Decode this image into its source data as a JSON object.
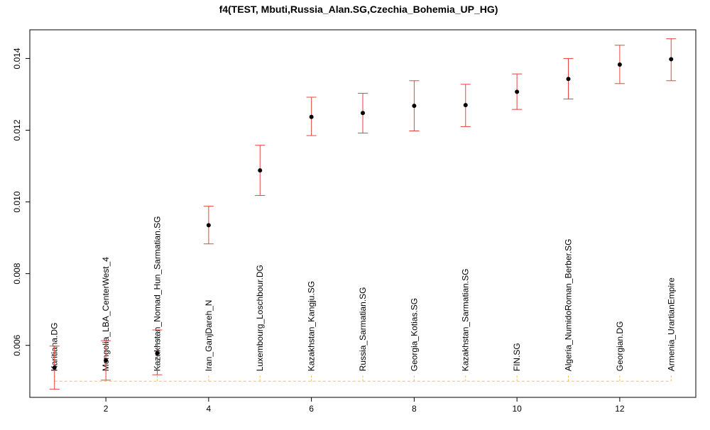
{
  "chart_data": {
    "type": "scatter",
    "title": "f4(TEST, Mbuti,Russia_Alan.SG,Czechia_Bohemia_UP_HG)",
    "xlabel": "",
    "ylabel": "",
    "xlim": [
      0.52,
      13.48
    ],
    "ylim": [
      0.00455,
      0.0148
    ],
    "x_ticks": [
      2,
      4,
      6,
      8,
      10,
      12
    ],
    "y_ticks": [
      0.006,
      0.008,
      0.01,
      0.012,
      0.014
    ],
    "y_tick_labels": [
      "0.006",
      "0.008",
      "0.010",
      "0.012",
      "0.014"
    ],
    "grid": false,
    "baseline_y": 0.005,
    "point_label_y": 0.005,
    "colors": {
      "point": "#000000",
      "error_bar": "#e8433f",
      "baseline": "#f5c542",
      "axis": "#000000"
    },
    "points": [
      {
        "x": 1,
        "y": 0.00538,
        "low": 0.00478,
        "high": 0.00598,
        "label": "Karitiana.DG"
      },
      {
        "x": 2,
        "y": 0.00558,
        "low": 0.00503,
        "high": 0.00613,
        "label": "Mongolia_LBA_CenterWest_4"
      },
      {
        "x": 3,
        "y": 0.00578,
        "low": 0.00518,
        "high": 0.00643,
        "label": "Kazakhstan_Nomad_Hun_Sarmatian.SG"
      },
      {
        "x": 4,
        "y": 0.00935,
        "low": 0.00883,
        "high": 0.00988,
        "label": "Iran_GanjDareh_N"
      },
      {
        "x": 5,
        "y": 0.01088,
        "low": 0.01018,
        "high": 0.01158,
        "label": "Luxembourg_Loschbour.DG"
      },
      {
        "x": 6,
        "y": 0.01237,
        "low": 0.01185,
        "high": 0.01292,
        "label": "Kazakhstan_Kangju.SG"
      },
      {
        "x": 7,
        "y": 0.01248,
        "low": 0.01192,
        "high": 0.01303,
        "label": "Russia_Sarmatian.SG"
      },
      {
        "x": 8,
        "y": 0.01268,
        "low": 0.01198,
        "high": 0.01338,
        "label": "Georgia_Kotias.SG"
      },
      {
        "x": 9,
        "y": 0.0127,
        "low": 0.0121,
        "high": 0.01328,
        "label": "Kazakhstan_Sarmatian.SG"
      },
      {
        "x": 10,
        "y": 0.01307,
        "low": 0.01258,
        "high": 0.01357,
        "label": "FIN.SG"
      },
      {
        "x": 11,
        "y": 0.01343,
        "low": 0.01287,
        "high": 0.014,
        "label": "Algeria_NumidoRoman_Berber.SG"
      },
      {
        "x": 12,
        "y": 0.01383,
        "low": 0.0133,
        "high": 0.01437,
        "label": "Georgian.DG"
      },
      {
        "x": 13,
        "y": 0.01398,
        "low": 0.01338,
        "high": 0.01455,
        "label": "Armenia_UrartianEmpire"
      }
    ]
  }
}
